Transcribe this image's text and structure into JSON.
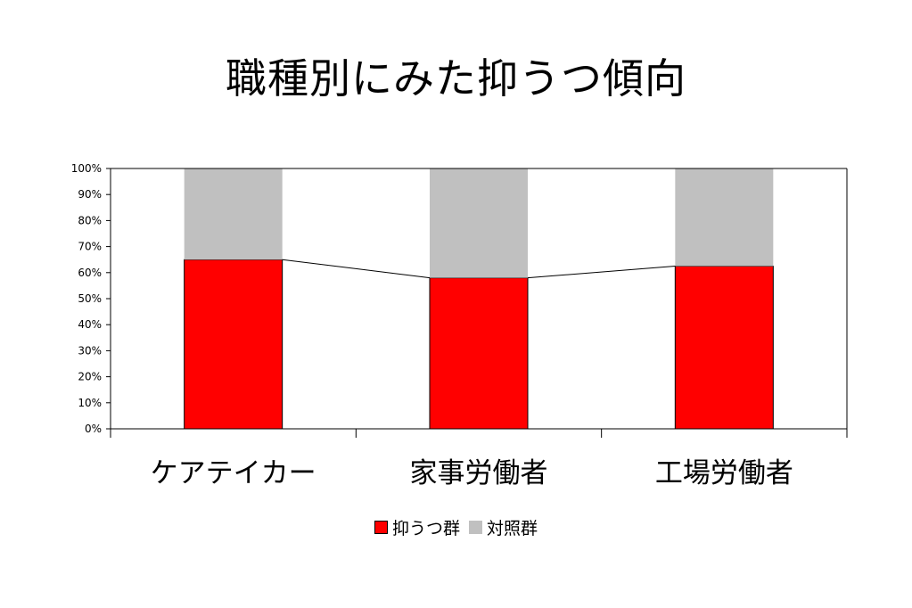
{
  "chart_data": {
    "type": "bar",
    "stacked": true,
    "title": "職種別にみた抑うつ傾向",
    "categories": [
      "ケアテイカー",
      "家事労働者",
      "工場労働者"
    ],
    "series": [
      {
        "name": "抑うつ群",
        "values": [
          65,
          58,
          62.5
        ],
        "color": "#ff0000"
      },
      {
        "name": "対照群",
        "values": [
          35,
          42,
          37.5
        ],
        "color": "#c0c0c0"
      }
    ],
    "y_ticks": [
      "0%",
      "10%",
      "20%",
      "30%",
      "40%",
      "50%",
      "60%",
      "70%",
      "80%",
      "90%",
      "100%"
    ],
    "ylim": [
      0,
      100
    ],
    "series_lines": true,
    "grid": false,
    "legend_position": "bottom"
  }
}
